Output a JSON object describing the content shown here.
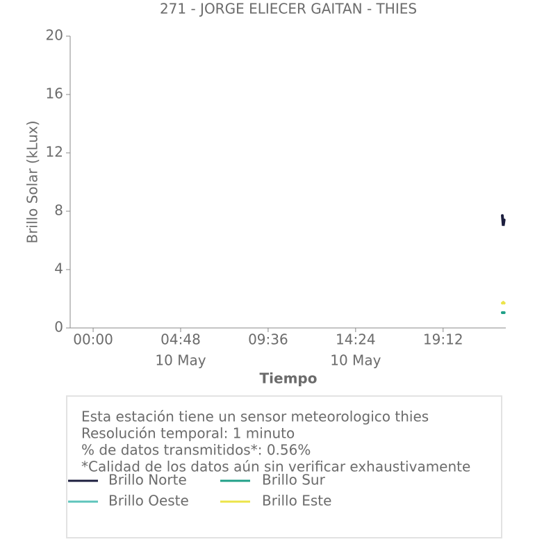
{
  "chart_data": {
    "type": "line",
    "title": "271 - JORGE ELIECER GAITAN - THIES",
    "y_label": "Brillo Solar (kLux)",
    "x_label": "Tiempo",
    "xlim": [
      -1.26,
      22.64
    ],
    "xticks": [
      {
        "value": 0,
        "label": "00:00"
      },
      {
        "value": 4.8,
        "label": "04:48",
        "date": "10 May"
      },
      {
        "value": 9.6,
        "label": "09:36"
      },
      {
        "value": 14.4,
        "label": "14:24",
        "date": "10 May"
      },
      {
        "value": 19.2,
        "label": "19:12"
      }
    ],
    "ylim": [
      0,
      20
    ],
    "yticks": [
      0,
      4,
      8,
      12,
      16,
      20
    ],
    "x": [
      22.45,
      22.5,
      22.55
    ],
    "series": [
      {
        "name": "Brillo Norte",
        "color": "#1c1e3e",
        "values": [
          7.7,
          7.0,
          7.4
        ]
      },
      {
        "name": "Brillo Sur",
        "color": "#21a088",
        "values": [
          1.05,
          1.05,
          1.05
        ]
      },
      {
        "name": "Brillo Oeste",
        "color": "#5ec4bb",
        "values": [
          1.05,
          1.05,
          1.05
        ]
      },
      {
        "name": "Brillo Este",
        "color": "#ece44a",
        "values": [
          1.7,
          1.75,
          1.7
        ]
      }
    ]
  },
  "info": [
    "Esta estación tiene un sensor meteorologico thies",
    "Resolución temporal: 1 minuto",
    "% de datos transmitidos*: 0.56%",
    "*Calidad de los datos aún sin verificar exhaustivamente"
  ]
}
